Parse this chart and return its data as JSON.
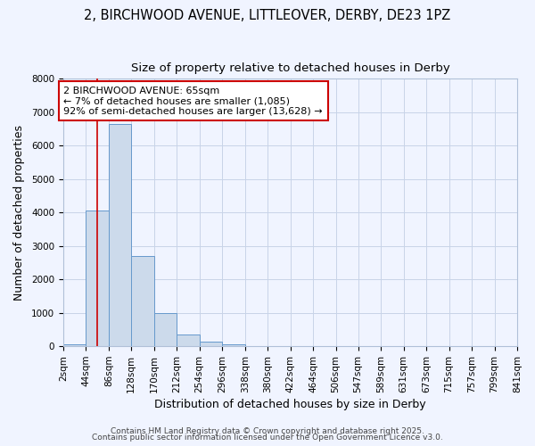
{
  "title1": "2, BIRCHWOOD AVENUE, LITTLEOVER, DERBY, DE23 1PZ",
  "title2": "Size of property relative to detached houses in Derby",
  "xlabel": "Distribution of detached houses by size in Derby",
  "ylabel": "Number of detached properties",
  "bin_edges": [
    2,
    44,
    86,
    128,
    170,
    212,
    254,
    296,
    338,
    380,
    422,
    464,
    506,
    547,
    589,
    631,
    673,
    715,
    757,
    799,
    841
  ],
  "bar_heights": [
    50,
    4050,
    6650,
    2700,
    980,
    350,
    130,
    60,
    5,
    0,
    0,
    0,
    0,
    0,
    0,
    0,
    0,
    0,
    0,
    0
  ],
  "bar_color": "#ccdaeb",
  "bar_edgecolor": "#6699cc",
  "property_size": 65,
  "red_line_color": "#cc0000",
  "annotation_line1": "2 BIRCHWOOD AVENUE: 65sqm",
  "annotation_line2": "← 7% of detached houses are smaller (1,085)",
  "annotation_line3": "92% of semi-detached houses are larger (13,628) →",
  "annotation_box_color": "#cc0000",
  "annotation_text_color": "#000000",
  "background_color": "#f0f4ff",
  "plot_bg_color": "#f0f4ff",
  "grid_color": "#c8d4e8",
  "ylim": [
    0,
    8000
  ],
  "yticks": [
    0,
    1000,
    2000,
    3000,
    4000,
    5000,
    6000,
    7000,
    8000
  ],
  "footer_text1": "Contains HM Land Registry data © Crown copyright and database right 2025.",
  "footer_text2": "Contains public sector information licensed under the Open Government Licence v3.0.",
  "title1_fontsize": 10.5,
  "title2_fontsize": 9.5,
  "axis_label_fontsize": 9,
  "tick_fontsize": 7.5,
  "footer_fontsize": 6.5,
  "annot_fontsize": 8
}
